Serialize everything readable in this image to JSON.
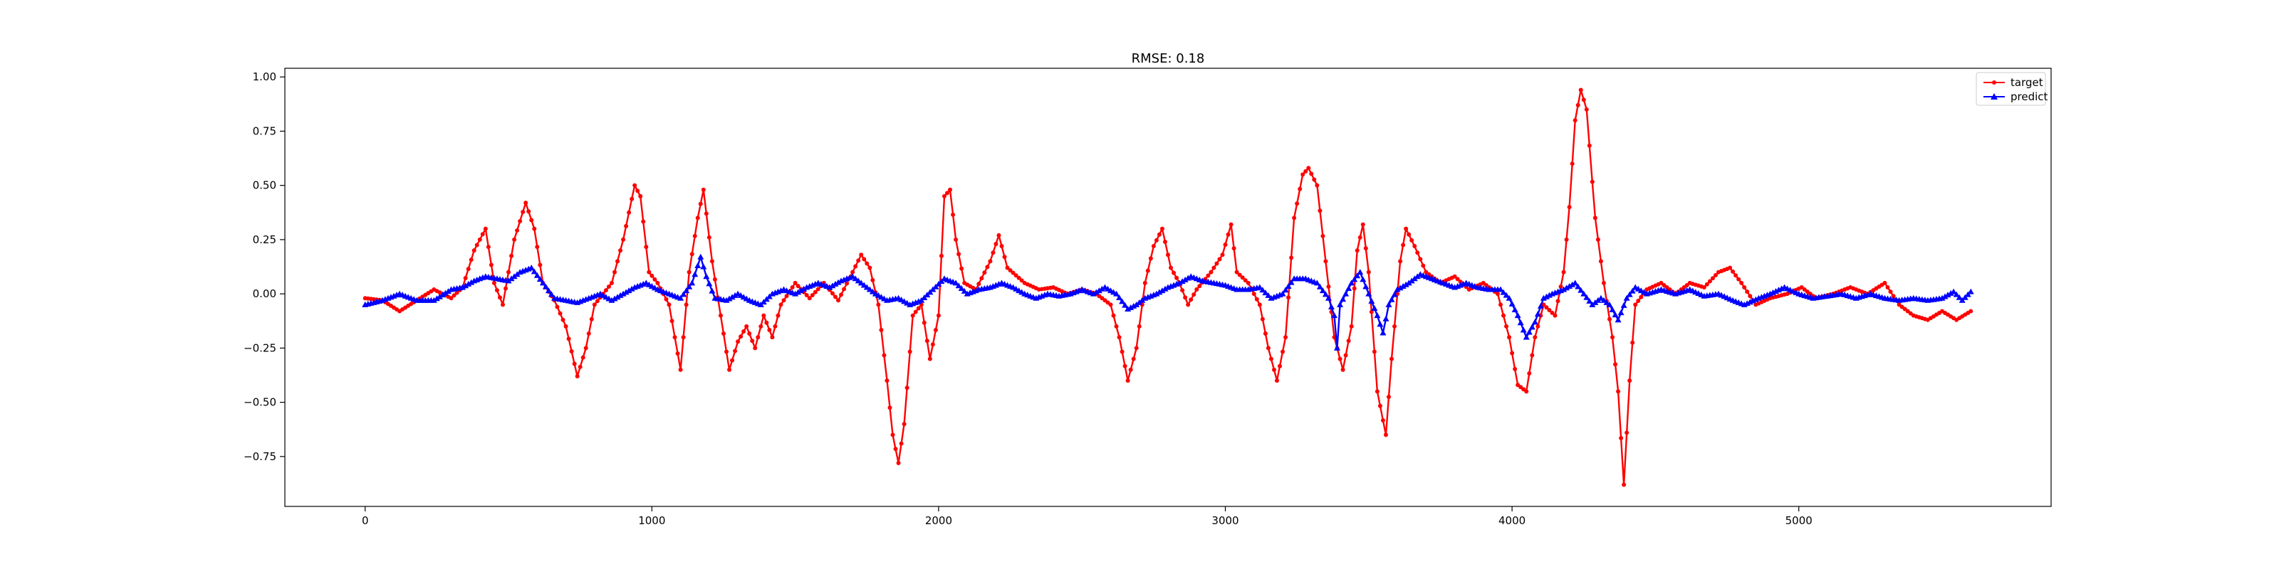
{
  "chart_data": {
    "type": "line",
    "title": "RMSE: 0.18",
    "xlabel": "",
    "ylabel": "",
    "xlim": [
      -280,
      5880
    ],
    "ylim": [
      -0.98,
      1.04
    ],
    "x_ticks": [
      0,
      1000,
      2000,
      3000,
      4000,
      5000
    ],
    "y_ticks": [
      -0.75,
      -0.5,
      -0.25,
      0.0,
      0.25,
      0.5,
      0.75,
      1.0
    ],
    "x_tick_labels": [
      "0",
      "1000",
      "2000",
      "3000",
      "4000",
      "5000"
    ],
    "y_tick_labels": [
      "−0.75",
      "−0.50",
      "−0.25",
      "0.00",
      "0.25",
      "0.50",
      "0.75",
      "1.00"
    ],
    "grid": false,
    "legend_position": "top-right",
    "series": [
      {
        "name": "target",
        "color": "#ff0000",
        "marker": "circle",
        "points": [
          [
            0,
            -0.02
          ],
          [
            60,
            -0.03
          ],
          [
            120,
            -0.08
          ],
          [
            180,
            -0.03
          ],
          [
            240,
            0.02
          ],
          [
            300,
            -0.02
          ],
          [
            340,
            0.03
          ],
          [
            380,
            0.2
          ],
          [
            420,
            0.3
          ],
          [
            450,
            0.05
          ],
          [
            480,
            -0.05
          ],
          [
            520,
            0.25
          ],
          [
            560,
            0.42
          ],
          [
            590,
            0.3
          ],
          [
            620,
            0.05
          ],
          [
            660,
            -0.03
          ],
          [
            700,
            -0.15
          ],
          [
            740,
            -0.38
          ],
          [
            770,
            -0.25
          ],
          [
            800,
            -0.05
          ],
          [
            860,
            0.05
          ],
          [
            900,
            0.25
          ],
          [
            940,
            0.5
          ],
          [
            960,
            0.45
          ],
          [
            990,
            0.1
          ],
          [
            1020,
            0.05
          ],
          [
            1060,
            -0.05
          ],
          [
            1100,
            -0.35
          ],
          [
            1130,
            0.1
          ],
          [
            1160,
            0.35
          ],
          [
            1180,
            0.48
          ],
          [
            1210,
            0.15
          ],
          [
            1240,
            -0.1
          ],
          [
            1270,
            -0.35
          ],
          [
            1300,
            -0.22
          ],
          [
            1330,
            -0.15
          ],
          [
            1360,
            -0.25
          ],
          [
            1390,
            -0.1
          ],
          [
            1420,
            -0.2
          ],
          [
            1450,
            -0.05
          ],
          [
            1500,
            0.05
          ],
          [
            1550,
            -0.02
          ],
          [
            1600,
            0.05
          ],
          [
            1650,
            -0.03
          ],
          [
            1700,
            0.1
          ],
          [
            1730,
            0.18
          ],
          [
            1760,
            0.12
          ],
          [
            1790,
            -0.05
          ],
          [
            1820,
            -0.4
          ],
          [
            1840,
            -0.65
          ],
          [
            1860,
            -0.78
          ],
          [
            1880,
            -0.6
          ],
          [
            1910,
            -0.1
          ],
          [
            1940,
            -0.05
          ],
          [
            1970,
            -0.3
          ],
          [
            2000,
            -0.1
          ],
          [
            2020,
            0.45
          ],
          [
            2040,
            0.48
          ],
          [
            2060,
            0.25
          ],
          [
            2090,
            0.05
          ],
          [
            2130,
            0.02
          ],
          [
            2180,
            0.15
          ],
          [
            2210,
            0.27
          ],
          [
            2240,
            0.12
          ],
          [
            2300,
            0.05
          ],
          [
            2350,
            0.02
          ],
          [
            2400,
            0.03
          ],
          [
            2450,
            0.0
          ],
          [
            2500,
            0.02
          ],
          [
            2550,
            0.0
          ],
          [
            2600,
            -0.05
          ],
          [
            2630,
            -0.2
          ],
          [
            2660,
            -0.4
          ],
          [
            2690,
            -0.25
          ],
          [
            2720,
            0.05
          ],
          [
            2750,
            0.22
          ],
          [
            2780,
            0.3
          ],
          [
            2810,
            0.12
          ],
          [
            2840,
            0.05
          ],
          [
            2870,
            -0.05
          ],
          [
            2900,
            0.02
          ],
          [
            2950,
            0.1
          ],
          [
            2990,
            0.18
          ],
          [
            3020,
            0.32
          ],
          [
            3040,
            0.1
          ],
          [
            3080,
            0.05
          ],
          [
            3120,
            -0.05
          ],
          [
            3150,
            -0.25
          ],
          [
            3180,
            -0.4
          ],
          [
            3210,
            -0.2
          ],
          [
            3240,
            0.35
          ],
          [
            3270,
            0.55
          ],
          [
            3290,
            0.58
          ],
          [
            3320,
            0.5
          ],
          [
            3350,
            0.15
          ],
          [
            3380,
            -0.2
          ],
          [
            3410,
            -0.35
          ],
          [
            3440,
            -0.15
          ],
          [
            3460,
            0.2
          ],
          [
            3480,
            0.32
          ],
          [
            3500,
            0.1
          ],
          [
            3530,
            -0.45
          ],
          [
            3560,
            -0.65
          ],
          [
            3580,
            -0.3
          ],
          [
            3610,
            0.15
          ],
          [
            3630,
            0.3
          ],
          [
            3660,
            0.22
          ],
          [
            3700,
            0.1
          ],
          [
            3750,
            0.05
          ],
          [
            3800,
            0.08
          ],
          [
            3850,
            0.02
          ],
          [
            3900,
            0.05
          ],
          [
            3950,
            0.0
          ],
          [
            3990,
            -0.2
          ],
          [
            4020,
            -0.42
          ],
          [
            4050,
            -0.45
          ],
          [
            4080,
            -0.2
          ],
          [
            4110,
            -0.05
          ],
          [
            4150,
            -0.1
          ],
          [
            4180,
            0.1
          ],
          [
            4200,
            0.4
          ],
          [
            4220,
            0.8
          ],
          [
            4240,
            0.94
          ],
          [
            4260,
            0.85
          ],
          [
            4290,
            0.35
          ],
          [
            4320,
            0.05
          ],
          [
            4350,
            -0.2
          ],
          [
            4370,
            -0.45
          ],
          [
            4390,
            -0.88
          ],
          [
            4410,
            -0.4
          ],
          [
            4430,
            -0.05
          ],
          [
            4470,
            0.02
          ],
          [
            4520,
            0.05
          ],
          [
            4570,
            0.0
          ],
          [
            4620,
            0.05
          ],
          [
            4670,
            0.03
          ],
          [
            4720,
            0.1
          ],
          [
            4760,
            0.12
          ],
          [
            4800,
            0.05
          ],
          [
            4850,
            -0.05
          ],
          [
            4900,
            -0.02
          ],
          [
            4960,
            0.0
          ],
          [
            5010,
            0.03
          ],
          [
            5060,
            -0.02
          ],
          [
            5120,
            0.0
          ],
          [
            5180,
            0.03
          ],
          [
            5240,
            0.0
          ],
          [
            5300,
            0.05
          ],
          [
            5350,
            -0.05
          ],
          [
            5400,
            -0.1
          ],
          [
            5450,
            -0.12
          ],
          [
            5500,
            -0.08
          ],
          [
            5550,
            -0.12
          ],
          [
            5600,
            -0.08
          ]
        ]
      },
      {
        "name": "predict",
        "color": "#0000ff",
        "marker": "triangle",
        "points": [
          [
            0,
            -0.05
          ],
          [
            60,
            -0.03
          ],
          [
            120,
            0.0
          ],
          [
            180,
            -0.03
          ],
          [
            240,
            -0.03
          ],
          [
            300,
            0.02
          ],
          [
            340,
            0.03
          ],
          [
            380,
            0.06
          ],
          [
            420,
            0.08
          ],
          [
            460,
            0.07
          ],
          [
            500,
            0.06
          ],
          [
            540,
            0.1
          ],
          [
            580,
            0.12
          ],
          [
            620,
            0.05
          ],
          [
            660,
            -0.02
          ],
          [
            700,
            -0.03
          ],
          [
            740,
            -0.04
          ],
          [
            780,
            -0.02
          ],
          [
            820,
            0.0
          ],
          [
            860,
            -0.03
          ],
          [
            900,
            0.0
          ],
          [
            940,
            0.03
          ],
          [
            980,
            0.05
          ],
          [
            1020,
            0.02
          ],
          [
            1060,
            0.0
          ],
          [
            1100,
            -0.02
          ],
          [
            1140,
            0.05
          ],
          [
            1170,
            0.17
          ],
          [
            1190,
            0.08
          ],
          [
            1220,
            -0.02
          ],
          [
            1260,
            -0.03
          ],
          [
            1300,
            0.0
          ],
          [
            1340,
            -0.03
          ],
          [
            1380,
            -0.05
          ],
          [
            1420,
            0.0
          ],
          [
            1460,
            0.02
          ],
          [
            1500,
            0.0
          ],
          [
            1540,
            0.03
          ],
          [
            1580,
            0.05
          ],
          [
            1620,
            0.03
          ],
          [
            1660,
            0.06
          ],
          [
            1700,
            0.08
          ],
          [
            1740,
            0.04
          ],
          [
            1780,
            0.0
          ],
          [
            1820,
            -0.03
          ],
          [
            1860,
            -0.02
          ],
          [
            1900,
            -0.05
          ],
          [
            1940,
            -0.03
          ],
          [
            1980,
            0.02
          ],
          [
            2020,
            0.07
          ],
          [
            2060,
            0.05
          ],
          [
            2100,
            0.0
          ],
          [
            2140,
            0.02
          ],
          [
            2180,
            0.03
          ],
          [
            2220,
            0.05
          ],
          [
            2260,
            0.03
          ],
          [
            2300,
            0.0
          ],
          [
            2340,
            -0.02
          ],
          [
            2380,
            0.0
          ],
          [
            2420,
            -0.01
          ],
          [
            2460,
            0.0
          ],
          [
            2500,
            0.02
          ],
          [
            2540,
            0.0
          ],
          [
            2580,
            0.03
          ],
          [
            2620,
            0.0
          ],
          [
            2660,
            -0.07
          ],
          [
            2690,
            -0.05
          ],
          [
            2720,
            -0.02
          ],
          [
            2760,
            0.0
          ],
          [
            2800,
            0.03
          ],
          [
            2840,
            0.05
          ],
          [
            2880,
            0.08
          ],
          [
            2920,
            0.06
          ],
          [
            2960,
            0.05
          ],
          [
            3000,
            0.04
          ],
          [
            3040,
            0.02
          ],
          [
            3080,
            0.02
          ],
          [
            3120,
            0.03
          ],
          [
            3160,
            -0.02
          ],
          [
            3200,
            0.0
          ],
          [
            3240,
            0.07
          ],
          [
            3280,
            0.07
          ],
          [
            3320,
            0.05
          ],
          [
            3360,
            -0.02
          ],
          [
            3380,
            -0.1
          ],
          [
            3390,
            -0.25
          ],
          [
            3400,
            -0.05
          ],
          [
            3440,
            0.05
          ],
          [
            3470,
            0.1
          ],
          [
            3500,
            0.0
          ],
          [
            3530,
            -0.1
          ],
          [
            3550,
            -0.18
          ],
          [
            3570,
            -0.05
          ],
          [
            3600,
            0.02
          ],
          [
            3640,
            0.05
          ],
          [
            3680,
            0.09
          ],
          [
            3720,
            0.07
          ],
          [
            3760,
            0.05
          ],
          [
            3800,
            0.03
          ],
          [
            3840,
            0.05
          ],
          [
            3880,
            0.03
          ],
          [
            3920,
            0.02
          ],
          [
            3960,
            0.02
          ],
          [
            3990,
            -0.02
          ],
          [
            4020,
            -0.1
          ],
          [
            4050,
            -0.2
          ],
          [
            4080,
            -0.13
          ],
          [
            4110,
            -0.02
          ],
          [
            4140,
            0.0
          ],
          [
            4180,
            0.02
          ],
          [
            4220,
            0.05
          ],
          [
            4250,
            0.0
          ],
          [
            4280,
            -0.05
          ],
          [
            4310,
            -0.02
          ],
          [
            4340,
            -0.05
          ],
          [
            4370,
            -0.12
          ],
          [
            4400,
            -0.02
          ],
          [
            4430,
            0.03
          ],
          [
            4470,
            0.0
          ],
          [
            4520,
            0.02
          ],
          [
            4570,
            0.0
          ],
          [
            4620,
            0.02
          ],
          [
            4670,
            -0.01
          ],
          [
            4720,
            0.0
          ],
          [
            4770,
            -0.03
          ],
          [
            4810,
            -0.05
          ],
          [
            4860,
            -0.02
          ],
          [
            4900,
            0.0
          ],
          [
            4950,
            0.03
          ],
          [
            5000,
            0.0
          ],
          [
            5050,
            -0.02
          ],
          [
            5100,
            -0.01
          ],
          [
            5150,
            0.0
          ],
          [
            5200,
            -0.02
          ],
          [
            5250,
            0.0
          ],
          [
            5300,
            -0.02
          ],
          [
            5350,
            -0.03
          ],
          [
            5400,
            -0.02
          ],
          [
            5450,
            -0.03
          ],
          [
            5500,
            -0.02
          ],
          [
            5540,
            0.01
          ],
          [
            5570,
            -0.03
          ],
          [
            5600,
            0.01
          ]
        ]
      }
    ]
  }
}
